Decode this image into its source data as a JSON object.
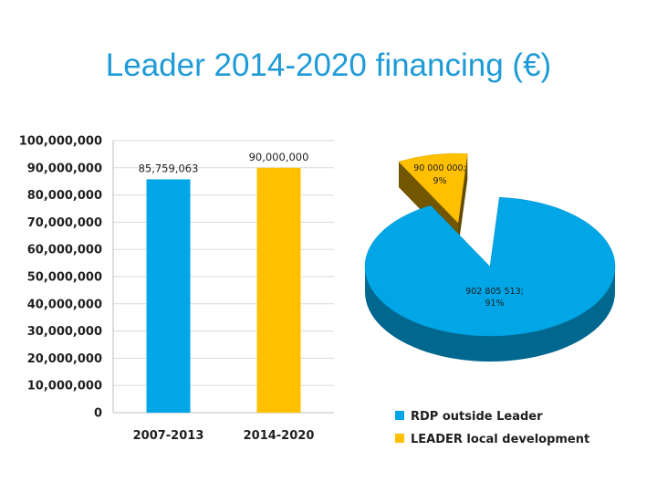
{
  "slide": {
    "title": "Leader 2014-2020 financing (€)"
  },
  "chart_data": [
    {
      "type": "bar",
      "categories": [
        "2007-2013",
        "2014-2020"
      ],
      "values": [
        85759063,
        90000000
      ],
      "data_labels": [
        "85,759,063",
        "90,000,000"
      ],
      "colors": [
        "#00a6e6",
        "#ffc000"
      ],
      "ylim": [
        0,
        100000000
      ],
      "yticks": [
        0,
        10000000,
        20000000,
        30000000,
        40000000,
        50000000,
        60000000,
        70000000,
        80000000,
        90000000,
        100000000
      ],
      "ytick_labels": [
        "0",
        "10,000,000",
        "20,000,000",
        "30,000,000",
        "40,000,000",
        "50,000,000",
        "60,000,000",
        "70,000,000",
        "80,000,000",
        "90,000,000",
        "100,000,000"
      ],
      "grid": true,
      "xlabel": "",
      "ylabel": ""
    },
    {
      "type": "pie",
      "style": "3d-exploded",
      "slices": [
        {
          "label": "RDP outside Leader",
          "value": 902805513,
          "percent": 91,
          "data_label_value": "902 805 513;",
          "data_label_pct": "91%",
          "color": "#00a6e6"
        },
        {
          "label": "LEADER local development",
          "value": 90000000,
          "percent": 9,
          "data_label_value": "90 000 000;",
          "data_label_pct": "9%",
          "color": "#ffc000"
        }
      ],
      "legend": "bottom"
    }
  ]
}
